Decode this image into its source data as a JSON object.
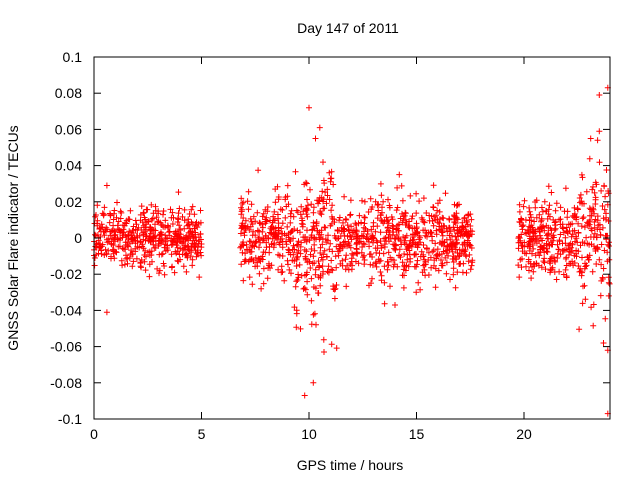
{
  "chart_data": {
    "type": "scatter",
    "title": "Day 147 of 2011",
    "xlabel": "GPS time / hours",
    "ylabel": "GNSS Solar Flare indicator / TECUs",
    "xlim": [
      0,
      24
    ],
    "ylim": [
      -0.1,
      0.1
    ],
    "xticks": [
      0,
      5,
      10,
      15,
      20
    ],
    "xtick_labels": [
      "0",
      "5",
      "10",
      "15",
      "20"
    ],
    "yticks": [
      -0.1,
      -0.08,
      -0.06,
      -0.04,
      -0.02,
      0,
      0.02,
      0.04,
      0.06,
      0.08,
      0.1
    ],
    "ytick_labels": [
      "-0.1",
      "-0.08",
      "-0.06",
      "-0.04",
      "-0.02",
      "0",
      "0.02",
      "0.04",
      "0.06",
      "0.08",
      "0.1"
    ],
    "grid": false,
    "marker": "+",
    "marker_color": "#ff0000",
    "segments": [
      {
        "x_start": 0.0,
        "x_end": 5.0,
        "noise_std": 0.008
      },
      {
        "x_start": 6.8,
        "x_end": 17.6,
        "noise_std": 0.011
      },
      {
        "x_start": 19.7,
        "x_end": 24.0,
        "noise_std": 0.01
      }
    ],
    "notable_points": [
      {
        "x": 10.0,
        "y": 0.072
      },
      {
        "x": 9.8,
        "y": -0.087
      },
      {
        "x": 10.2,
        "y": -0.08
      },
      {
        "x": 10.7,
        "y": -0.063
      },
      {
        "x": 10.3,
        "y": 0.055
      },
      {
        "x": 10.5,
        "y": 0.061
      },
      {
        "x": 0.6,
        "y": -0.041
      },
      {
        "x": 0.6,
        "y": 0.029
      },
      {
        "x": 23.9,
        "y": 0.083
      },
      {
        "x": 23.5,
        "y": 0.079
      },
      {
        "x": 23.9,
        "y": -0.097
      },
      {
        "x": 23.7,
        "y": -0.058
      },
      {
        "x": 23.9,
        "y": -0.062
      },
      {
        "x": 23.1,
        "y": 0.055
      },
      {
        "x": 23.5,
        "y": 0.059
      },
      {
        "x": 14.0,
        "y": -0.037
      },
      {
        "x": 14.2,
        "y": 0.035
      }
    ]
  }
}
